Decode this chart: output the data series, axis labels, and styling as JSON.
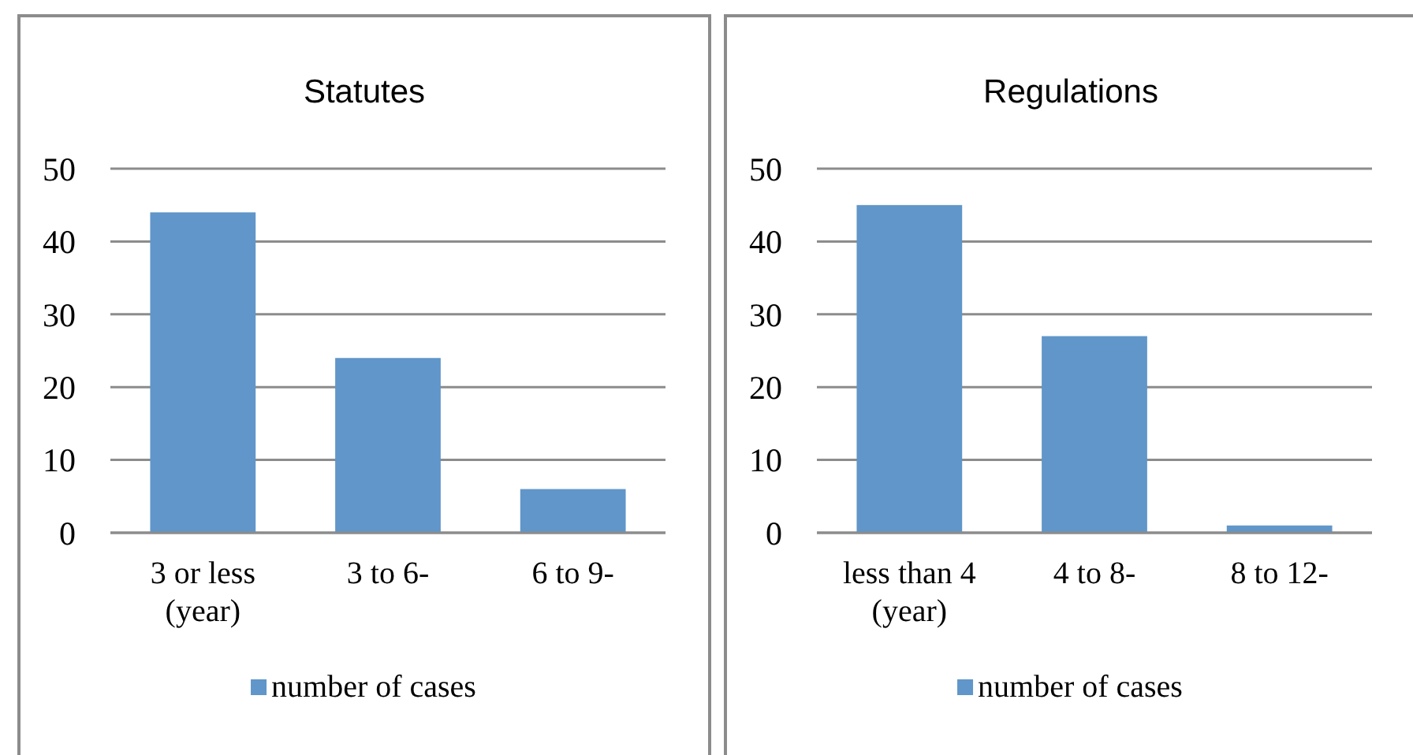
{
  "chart_data": [
    {
      "type": "bar",
      "title": "Statutes",
      "categories": [
        "3 or less (year)",
        "3 to 6-",
        "6 to 9-"
      ],
      "series": [
        {
          "name": "number of cases",
          "color": "#6096c9",
          "values": [
            44,
            24,
            6
          ]
        }
      ],
      "ylim": [
        0,
        50
      ],
      "yticks": [
        0,
        10,
        20,
        30,
        40,
        50
      ],
      "grid": "y",
      "legend": "bottom"
    },
    {
      "type": "bar",
      "title": "Regulations",
      "categories": [
        "less than 4 (year)",
        "4 to 8-",
        "8 to 12-"
      ],
      "series": [
        {
          "name": "number of cases",
          "color": "#6096c9",
          "values": [
            45,
            27,
            1
          ]
        }
      ],
      "ylim": [
        0,
        50
      ],
      "yticks": [
        0,
        10,
        20,
        30,
        40,
        50
      ],
      "grid": "y",
      "legend": "bottom"
    }
  ]
}
